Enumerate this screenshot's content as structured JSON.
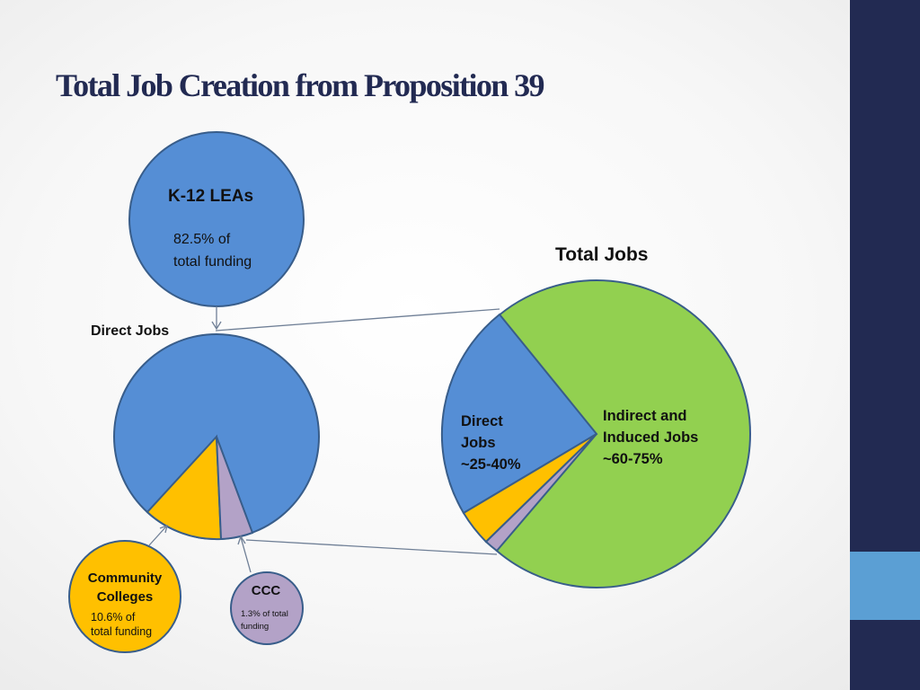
{
  "slide": {
    "title": "Total Job Creation from Proposition 39"
  },
  "labels": {
    "k12_title": "K-12 LEAs",
    "k12_line1": "82.5% of",
    "k12_line2": "total funding",
    "direct_jobs_heading": "Direct Jobs",
    "cc_title_line1": "Community",
    "cc_title_line2": "Colleges",
    "cc_line1": "10.6% of",
    "cc_line2": "total funding",
    "ccc_title": "CCC",
    "ccc_line1": "1.3% of total",
    "ccc_line2": "funding",
    "total_jobs_heading": "Total Jobs",
    "tj_direct_line1": "Direct",
    "tj_direct_line2": "Jobs",
    "tj_direct_line3": "~25-40%",
    "tj_indirect_line1": "Indirect and",
    "tj_indirect_line2": "Induced Jobs",
    "tj_indirect_line3": "~60-75%"
  },
  "colors": {
    "k12_blue": "#558ed5",
    "community_colleges_yellow": "#ffc000",
    "ccc_purple": "#b3a2c7",
    "indirect_green": "#92d050",
    "outline": "#385d8a",
    "sidebar_navy": "#222a52",
    "sidebar_accent": "#5b9fd4"
  }
}
